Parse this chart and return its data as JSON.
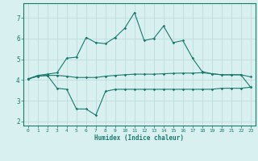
{
  "xlabel": "Humidex (Indice chaleur)",
  "x": [
    0,
    1,
    2,
    3,
    4,
    5,
    6,
    7,
    8,
    9,
    10,
    11,
    12,
    13,
    14,
    15,
    16,
    17,
    18,
    19,
    20,
    21,
    22,
    23
  ],
  "line_mean": [
    4.05,
    4.18,
    4.22,
    4.22,
    4.18,
    4.12,
    4.12,
    4.12,
    4.18,
    4.22,
    4.25,
    4.28,
    4.28,
    4.28,
    4.3,
    4.32,
    4.33,
    4.33,
    4.35,
    4.3,
    4.25,
    4.25,
    4.25,
    4.15
  ],
  "line_max": [
    4.05,
    4.22,
    4.28,
    4.35,
    5.05,
    5.1,
    6.05,
    5.8,
    5.75,
    6.05,
    6.5,
    7.25,
    5.9,
    6.0,
    6.6,
    5.8,
    5.9,
    5.05,
    4.4,
    4.3,
    4.25,
    4.25,
    4.25,
    3.65
  ],
  "line_min": [
    4.05,
    4.18,
    4.22,
    3.6,
    3.55,
    2.6,
    2.6,
    2.3,
    3.45,
    3.55,
    3.55,
    3.55,
    3.55,
    3.55,
    3.55,
    3.55,
    3.55,
    3.55,
    3.55,
    3.55,
    3.6,
    3.6,
    3.6,
    3.65
  ],
  "line_color": "#1a7a6e",
  "background_color": "#d8f0f0",
  "grid_color": "#b8d8d8",
  "ylim": [
    1.8,
    7.7
  ],
  "xlim": [
    -0.5,
    23.5
  ],
  "yticks": [
    2,
    3,
    4,
    5,
    6,
    7
  ],
  "xticks": [
    0,
    1,
    2,
    3,
    4,
    5,
    6,
    7,
    8,
    9,
    10,
    11,
    12,
    13,
    14,
    15,
    16,
    17,
    18,
    19,
    20,
    21,
    22,
    23
  ]
}
